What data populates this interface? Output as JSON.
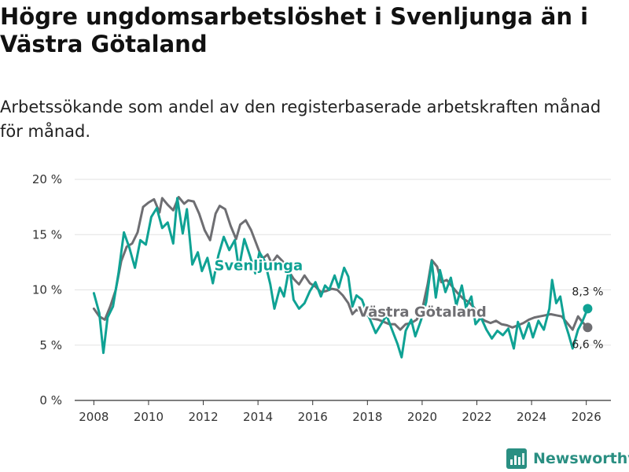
{
  "title": "Högre ungdomsarbetslöshet i Svenljunga än i Västra Götaland",
  "subtitle": "Arbetssökande som andel av den registerbaserade arbetskraften månad för månad.",
  "brand": {
    "name": "Newsworthy",
    "icon": "bar-chart-logo-icon"
  },
  "colors": {
    "svenljunga": "#0fa294",
    "vastra": "#6e6e72",
    "grid": "#e2e2e2",
    "axis": "#333333"
  },
  "chart_data": {
    "type": "line",
    "title": "Högre ungdomsarbetslöshet i Svenljunga än i Västra Götaland",
    "xlabel": "",
    "ylabel": "",
    "xlim": [
      2007.3,
      2026.9
    ],
    "ylim": [
      0,
      20
    ],
    "grid": true,
    "x_ticks": [
      2008,
      2010,
      2012,
      2014,
      2016,
      2018,
      2020,
      2022,
      2024,
      2026
    ],
    "x_tick_labels": [
      "2008",
      "2010",
      "2012",
      "2014",
      "2016",
      "2018",
      "2020",
      "2022",
      "2024",
      "2026"
    ],
    "y_ticks": [
      0,
      5,
      10,
      15,
      20
    ],
    "y_tick_labels": [
      "0 %",
      "5 %",
      "10 %",
      "15 %",
      "20 %"
    ],
    "series": [
      {
        "name": "Svenljunga",
        "key": "svenljunga",
        "end_label": "8,3 %",
        "points": [
          [
            2008.0,
            9.7
          ],
          [
            2008.2,
            7.9
          ],
          [
            2008.35,
            4.3
          ],
          [
            2008.5,
            7.5
          ],
          [
            2008.7,
            8.5
          ],
          [
            2008.9,
            11.5
          ],
          [
            2009.1,
            15.2
          ],
          [
            2009.3,
            13.8
          ],
          [
            2009.5,
            12.0
          ],
          [
            2009.7,
            14.5
          ],
          [
            2009.9,
            14.1
          ],
          [
            2010.1,
            16.6
          ],
          [
            2010.3,
            17.4
          ],
          [
            2010.5,
            15.6
          ],
          [
            2010.7,
            16.1
          ],
          [
            2010.9,
            14.2
          ],
          [
            2011.05,
            18.3
          ],
          [
            2011.25,
            15.1
          ],
          [
            2011.4,
            17.3
          ],
          [
            2011.6,
            12.3
          ],
          [
            2011.8,
            13.4
          ],
          [
            2011.95,
            11.7
          ],
          [
            2012.15,
            12.9
          ],
          [
            2012.35,
            10.6
          ],
          [
            2012.55,
            13.1
          ],
          [
            2012.75,
            14.8
          ],
          [
            2012.95,
            13.6
          ],
          [
            2013.15,
            14.5
          ],
          [
            2013.3,
            11.9
          ],
          [
            2013.5,
            14.6
          ],
          [
            2013.7,
            13.1
          ],
          [
            2013.9,
            11.5
          ],
          [
            2014.05,
            13.4
          ],
          [
            2014.25,
            12.6
          ],
          [
            2014.45,
            10.5
          ],
          [
            2014.6,
            8.3
          ],
          [
            2014.8,
            10.2
          ],
          [
            2014.95,
            9.4
          ],
          [
            2015.15,
            12.1
          ],
          [
            2015.3,
            9.1
          ],
          [
            2015.5,
            8.3
          ],
          [
            2015.7,
            8.8
          ],
          [
            2015.9,
            9.9
          ],
          [
            2016.1,
            10.7
          ],
          [
            2016.3,
            9.4
          ],
          [
            2016.45,
            10.4
          ],
          [
            2016.6,
            10.0
          ],
          [
            2016.8,
            11.3
          ],
          [
            2016.95,
            10.2
          ],
          [
            2017.15,
            12.0
          ],
          [
            2017.3,
            11.2
          ],
          [
            2017.45,
            8.5
          ],
          [
            2017.6,
            9.5
          ],
          [
            2017.8,
            9.1
          ],
          [
            2017.95,
            8.1
          ],
          [
            2018.1,
            7.3
          ],
          [
            2018.3,
            6.1
          ],
          [
            2018.5,
            6.9
          ],
          [
            2018.7,
            7.7
          ],
          [
            2018.9,
            6.4
          ],
          [
            2019.1,
            5.1
          ],
          [
            2019.25,
            3.9
          ],
          [
            2019.4,
            6.3
          ],
          [
            2019.6,
            7.3
          ],
          [
            2019.75,
            5.8
          ],
          [
            2019.95,
            7.2
          ],
          [
            2020.15,
            8.9
          ],
          [
            2020.35,
            12.6
          ],
          [
            2020.5,
            9.3
          ],
          [
            2020.65,
            11.8
          ],
          [
            2020.85,
            9.8
          ],
          [
            2021.05,
            11.1
          ],
          [
            2021.25,
            8.6
          ],
          [
            2021.45,
            10.4
          ],
          [
            2021.6,
            8.4
          ],
          [
            2021.8,
            9.4
          ],
          [
            2021.95,
            6.9
          ],
          [
            2022.15,
            7.5
          ],
          [
            2022.35,
            6.4
          ],
          [
            2022.55,
            5.6
          ],
          [
            2022.75,
            6.3
          ],
          [
            2022.95,
            5.9
          ],
          [
            2023.15,
            6.5
          ],
          [
            2023.35,
            4.7
          ],
          [
            2023.5,
            7.1
          ],
          [
            2023.7,
            5.6
          ],
          [
            2023.9,
            7.0
          ],
          [
            2024.05,
            5.7
          ],
          [
            2024.25,
            7.2
          ],
          [
            2024.45,
            6.4
          ],
          [
            2024.65,
            8.3
          ],
          [
            2024.75,
            10.9
          ],
          [
            2024.9,
            8.8
          ],
          [
            2025.05,
            9.4
          ],
          [
            2025.2,
            7.2
          ],
          [
            2025.35,
            6.0
          ],
          [
            2025.5,
            4.7
          ],
          [
            2025.7,
            6.4
          ],
          [
            2025.85,
            7.1
          ],
          [
            2026.05,
            8.3
          ]
        ]
      },
      {
        "name": "Västra Götaland",
        "key": "vastra",
        "end_label": "6,6 %",
        "points": [
          [
            2008.0,
            8.3
          ],
          [
            2008.2,
            7.6
          ],
          [
            2008.4,
            7.3
          ],
          [
            2008.6,
            8.5
          ],
          [
            2008.8,
            10.0
          ],
          [
            2009.0,
            12.6
          ],
          [
            2009.2,
            13.9
          ],
          [
            2009.4,
            14.2
          ],
          [
            2009.6,
            15.2
          ],
          [
            2009.8,
            17.5
          ],
          [
            2010.0,
            17.9
          ],
          [
            2010.2,
            18.2
          ],
          [
            2010.4,
            17.0
          ],
          [
            2010.5,
            18.3
          ],
          [
            2010.7,
            17.7
          ],
          [
            2010.9,
            17.2
          ],
          [
            2011.1,
            18.4
          ],
          [
            2011.3,
            17.8
          ],
          [
            2011.45,
            18.1
          ],
          [
            2011.65,
            18.0
          ],
          [
            2011.85,
            16.9
          ],
          [
            2012.05,
            15.4
          ],
          [
            2012.25,
            14.5
          ],
          [
            2012.45,
            16.9
          ],
          [
            2012.6,
            17.6
          ],
          [
            2012.8,
            17.3
          ],
          [
            2013.0,
            15.8
          ],
          [
            2013.2,
            14.6
          ],
          [
            2013.35,
            15.9
          ],
          [
            2013.55,
            16.3
          ],
          [
            2013.75,
            15.4
          ],
          [
            2013.95,
            14.1
          ],
          [
            2014.15,
            12.8
          ],
          [
            2014.35,
            13.2
          ],
          [
            2014.5,
            12.4
          ],
          [
            2014.7,
            13.1
          ],
          [
            2014.9,
            12.6
          ],
          [
            2015.1,
            11.8
          ],
          [
            2015.3,
            11.0
          ],
          [
            2015.5,
            10.5
          ],
          [
            2015.7,
            11.3
          ],
          [
            2015.9,
            10.6
          ],
          [
            2016.1,
            10.3
          ],
          [
            2016.3,
            9.8
          ],
          [
            2016.5,
            9.9
          ],
          [
            2016.7,
            10.1
          ],
          [
            2016.9,
            10.0
          ],
          [
            2017.1,
            9.5
          ],
          [
            2017.3,
            8.8
          ],
          [
            2017.45,
            7.8
          ],
          [
            2017.6,
            8.2
          ],
          [
            2017.8,
            8.0
          ],
          [
            2018.0,
            7.7
          ],
          [
            2018.2,
            7.4
          ],
          [
            2018.4,
            7.3
          ],
          [
            2018.6,
            7.1
          ],
          [
            2018.8,
            6.9
          ],
          [
            2019.0,
            6.9
          ],
          [
            2019.2,
            6.4
          ],
          [
            2019.4,
            6.9
          ],
          [
            2019.6,
            7.0
          ],
          [
            2019.8,
            7.3
          ],
          [
            2020.0,
            8.2
          ],
          [
            2020.2,
            10.5
          ],
          [
            2020.35,
            12.7
          ],
          [
            2020.55,
            12.1
          ],
          [
            2020.7,
            10.7
          ],
          [
            2020.9,
            10.9
          ],
          [
            2021.1,
            10.3
          ],
          [
            2021.3,
            9.7
          ],
          [
            2021.5,
            9.2
          ],
          [
            2021.7,
            8.9
          ],
          [
            2021.9,
            8.4
          ],
          [
            2022.1,
            7.5
          ],
          [
            2022.3,
            7.2
          ],
          [
            2022.5,
            7.0
          ],
          [
            2022.7,
            7.2
          ],
          [
            2022.9,
            6.9
          ],
          [
            2023.1,
            6.8
          ],
          [
            2023.3,
            6.6
          ],
          [
            2023.5,
            6.8
          ],
          [
            2023.7,
            7.0
          ],
          [
            2023.9,
            7.3
          ],
          [
            2024.1,
            7.5
          ],
          [
            2024.3,
            7.6
          ],
          [
            2024.5,
            7.7
          ],
          [
            2024.7,
            7.8
          ],
          [
            2024.9,
            7.7
          ],
          [
            2025.1,
            7.6
          ],
          [
            2025.3,
            7.0
          ],
          [
            2025.5,
            6.4
          ],
          [
            2025.7,
            7.6
          ],
          [
            2025.85,
            7.1
          ],
          [
            2026.05,
            6.6
          ]
        ]
      }
    ]
  }
}
